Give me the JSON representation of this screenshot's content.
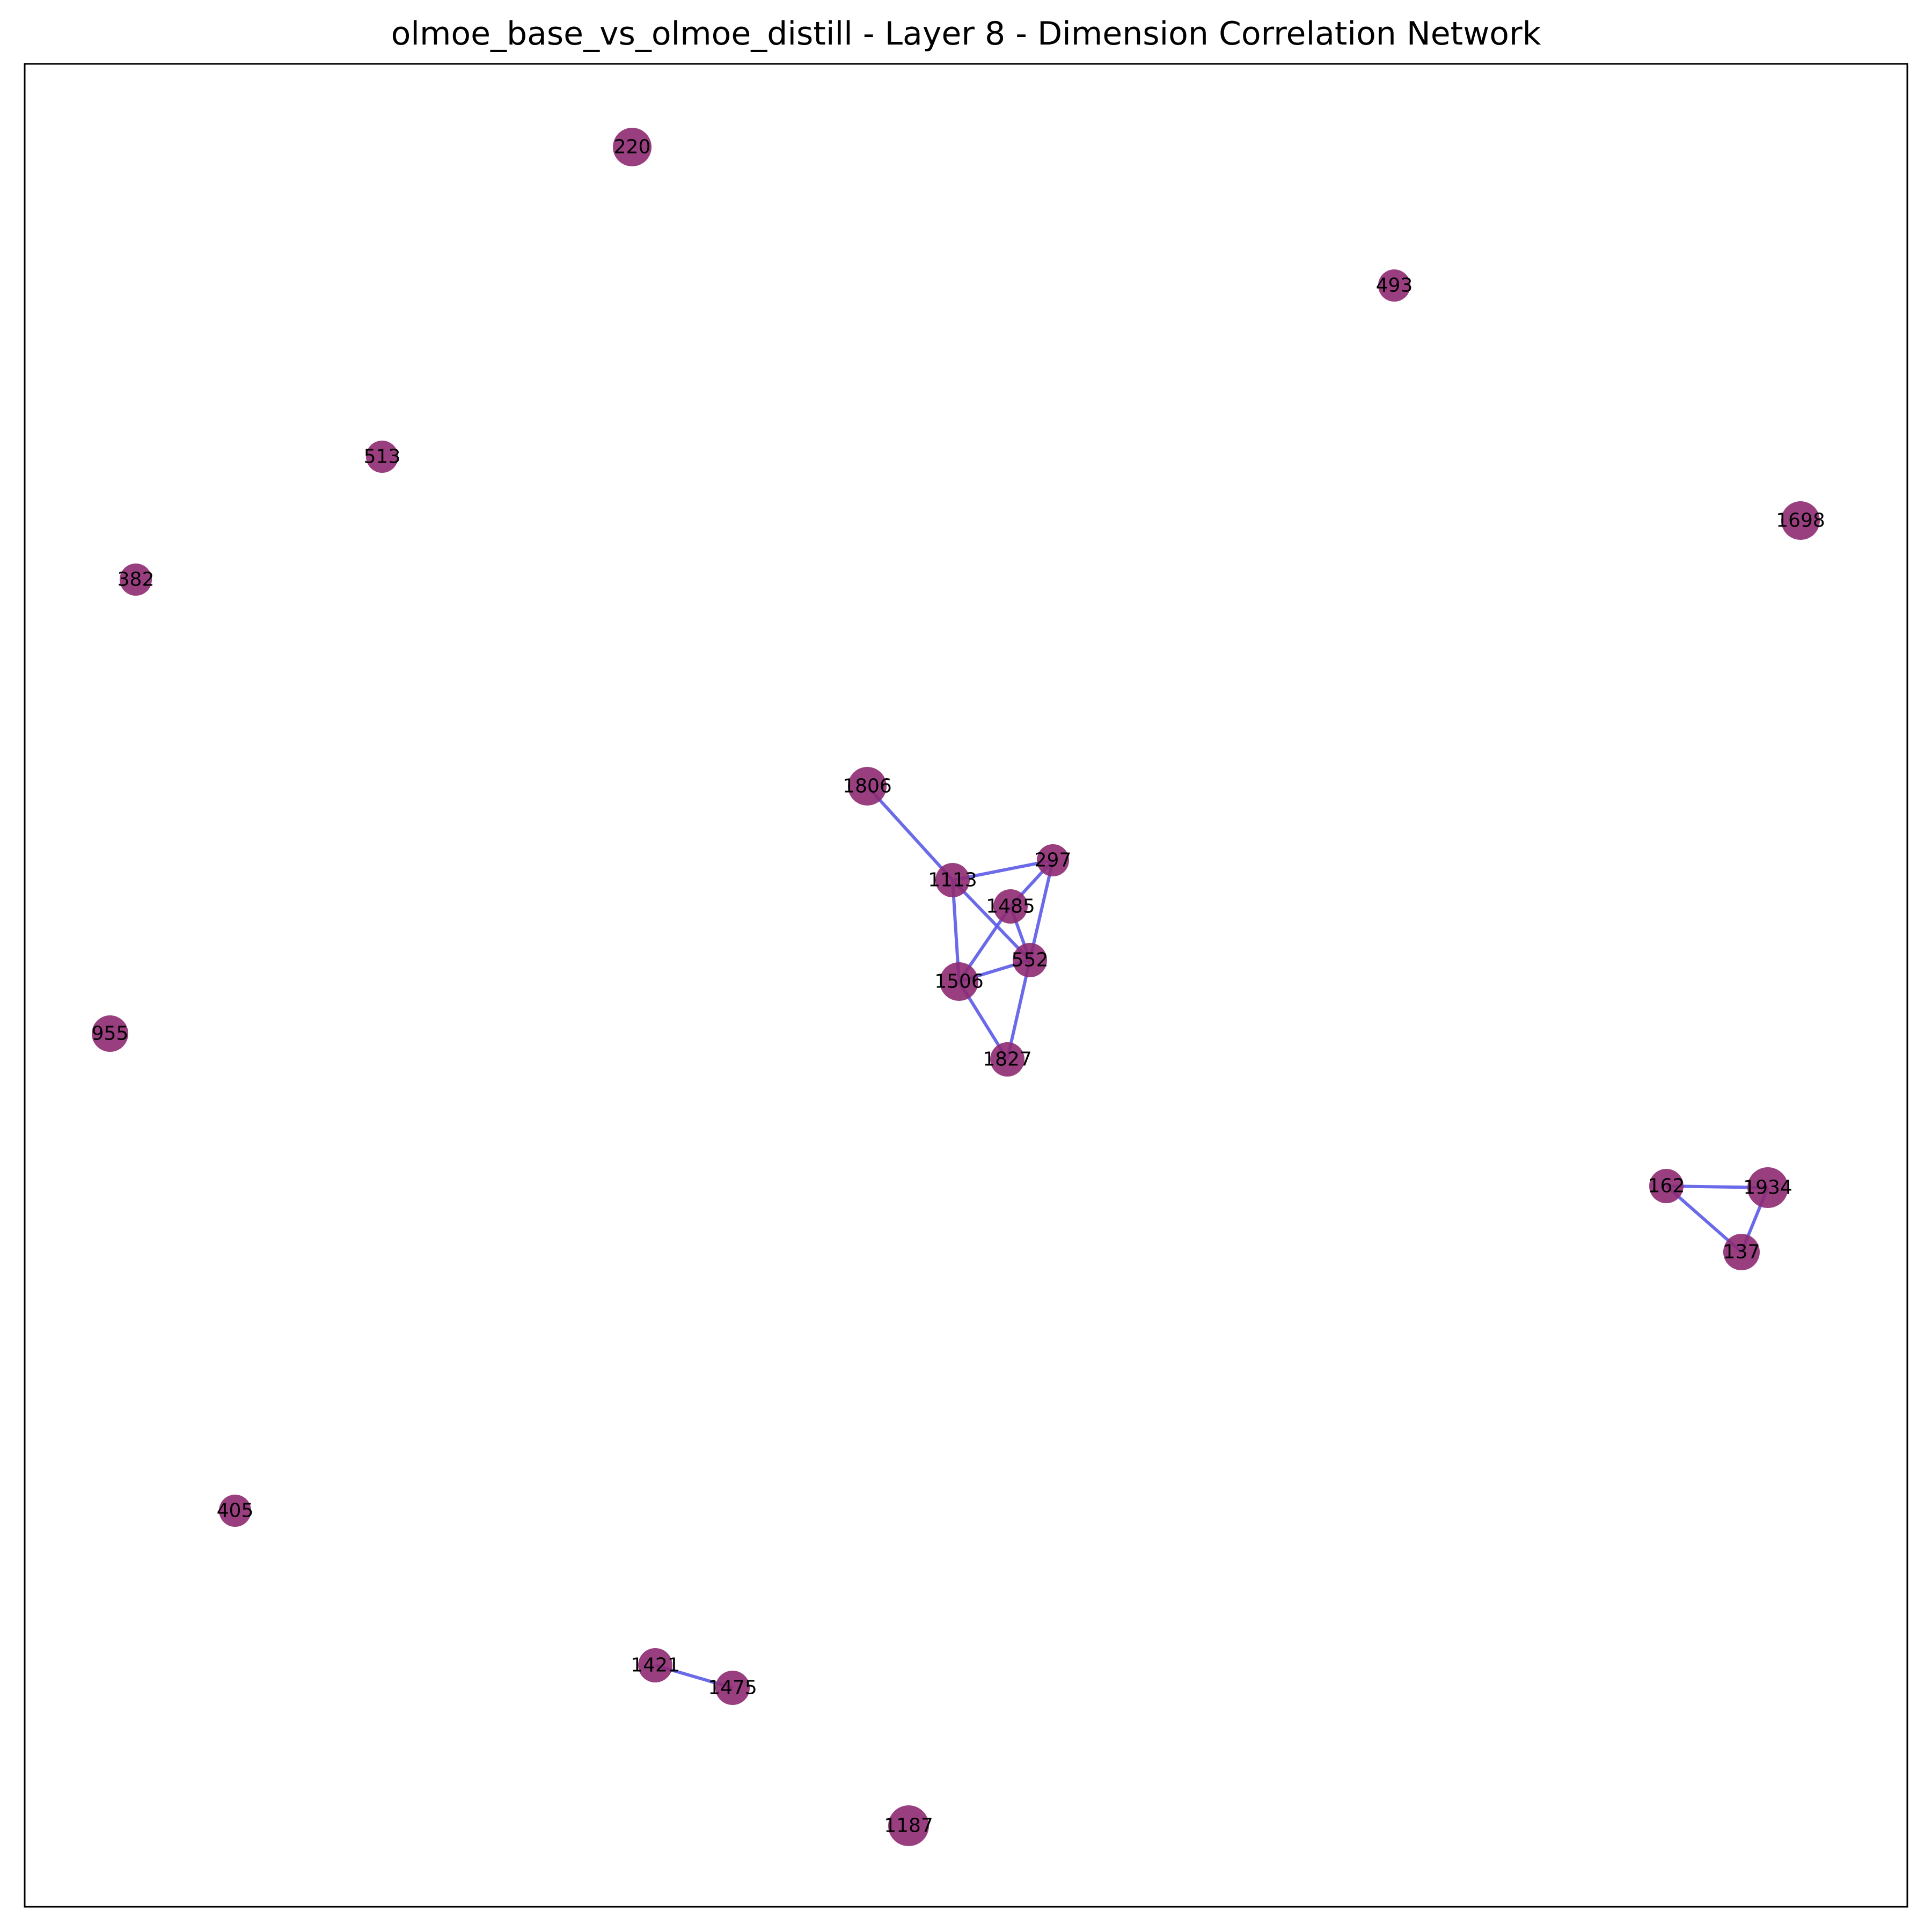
{
  "title": "olmoe_base_vs_olmoe_distill - Layer 8 - Dimension Correlation Network",
  "colors": {
    "node": "#8e2a72",
    "edge": "#5b5be8",
    "frame": "#000000"
  },
  "nodes": [
    {
      "id": "220",
      "label": "220"
    },
    {
      "id": "493",
      "label": "493"
    },
    {
      "id": "513",
      "label": "513"
    },
    {
      "id": "1698",
      "label": "1698"
    },
    {
      "id": "382",
      "label": "382"
    },
    {
      "id": "1806",
      "label": "1806"
    },
    {
      "id": "297",
      "label": "297"
    },
    {
      "id": "1113",
      "label": "1113"
    },
    {
      "id": "1485",
      "label": "1485"
    },
    {
      "id": "552",
      "label": "552"
    },
    {
      "id": "1506",
      "label": "1506"
    },
    {
      "id": "955",
      "label": "955"
    },
    {
      "id": "1827",
      "label": "1827"
    },
    {
      "id": "162",
      "label": "162"
    },
    {
      "id": "1934",
      "label": "1934"
    },
    {
      "id": "137",
      "label": "137"
    },
    {
      "id": "405",
      "label": "405"
    },
    {
      "id": "1421",
      "label": "1421"
    },
    {
      "id": "1475",
      "label": "1475"
    },
    {
      "id": "1187",
      "label": "1187"
    }
  ],
  "edges": [
    [
      "1806",
      "1113"
    ],
    [
      "1113",
      "297"
    ],
    [
      "1113",
      "552"
    ],
    [
      "1113",
      "1506"
    ],
    [
      "297",
      "1485"
    ],
    [
      "297",
      "552"
    ],
    [
      "1485",
      "552"
    ],
    [
      "1485",
      "1506"
    ],
    [
      "552",
      "1506"
    ],
    [
      "552",
      "1827"
    ],
    [
      "1506",
      "1827"
    ],
    [
      "162",
      "1934"
    ],
    [
      "162",
      "137"
    ],
    [
      "1934",
      "137"
    ],
    [
      "1421",
      "1475"
    ]
  ]
}
